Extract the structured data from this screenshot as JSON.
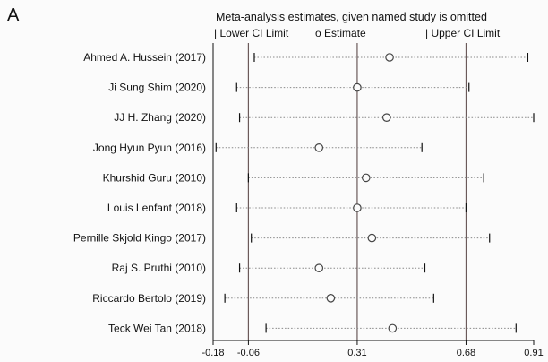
{
  "panel_label": "A",
  "chart_data": {
    "type": "scatter",
    "title": "Meta-analysis estimates, given named study is omitted",
    "legend": [
      {
        "marker": "|",
        "label": "Lower CI Limit"
      },
      {
        "marker": "o",
        "label": "Estimate"
      },
      {
        "marker": "|",
        "label": "Upper CI Limit"
      }
    ],
    "legend_position": "top",
    "xlim": [
      -0.18,
      0.91
    ],
    "xticks": [
      -0.18,
      -0.06,
      0.31,
      0.68,
      0.91
    ],
    "xtick_labels": [
      "-0.18",
      "-0.06",
      "0.31",
      "0.68",
      "0.91"
    ],
    "reference_lines": [
      -0.06,
      0.31,
      0.68
    ],
    "studies": [
      {
        "name": "Ahmed A. Hussein (2017)",
        "lower": -0.04,
        "estimate": 0.42,
        "upper": 0.89
      },
      {
        "name": "Ji Sung Shim (2020)",
        "lower": -0.1,
        "estimate": 0.31,
        "upper": 0.69
      },
      {
        "name": "JJ H. Zhang (2020)",
        "lower": -0.09,
        "estimate": 0.41,
        "upper": 0.91
      },
      {
        "name": "Jong Hyun Pyun  (2016)",
        "lower": -0.17,
        "estimate": 0.18,
        "upper": 0.53
      },
      {
        "name": "Khurshid Guru (2010)",
        "lower": -0.06,
        "estimate": 0.34,
        "upper": 0.74
      },
      {
        "name": "Louis Lenfant (2018)",
        "lower": -0.1,
        "estimate": 0.31,
        "upper": 0.68
      },
      {
        "name": "Pernille Skjold Kingo (2017)",
        "lower": -0.05,
        "estimate": 0.36,
        "upper": 0.76
      },
      {
        "name": "Raj S. Pruthi  (2010)",
        "lower": -0.09,
        "estimate": 0.18,
        "upper": 0.54
      },
      {
        "name": "Riccardo Bertolo (2019)",
        "lower": -0.14,
        "estimate": 0.22,
        "upper": 0.57
      },
      {
        "name": "Teck Wei Tan (2018)",
        "lower": 0.0,
        "estimate": 0.43,
        "upper": 0.85
      }
    ],
    "grid": false
  },
  "colors": {
    "axis": "#111111",
    "refline": "#6b5a5a",
    "dotted": "#888888",
    "marker": "#444444"
  }
}
